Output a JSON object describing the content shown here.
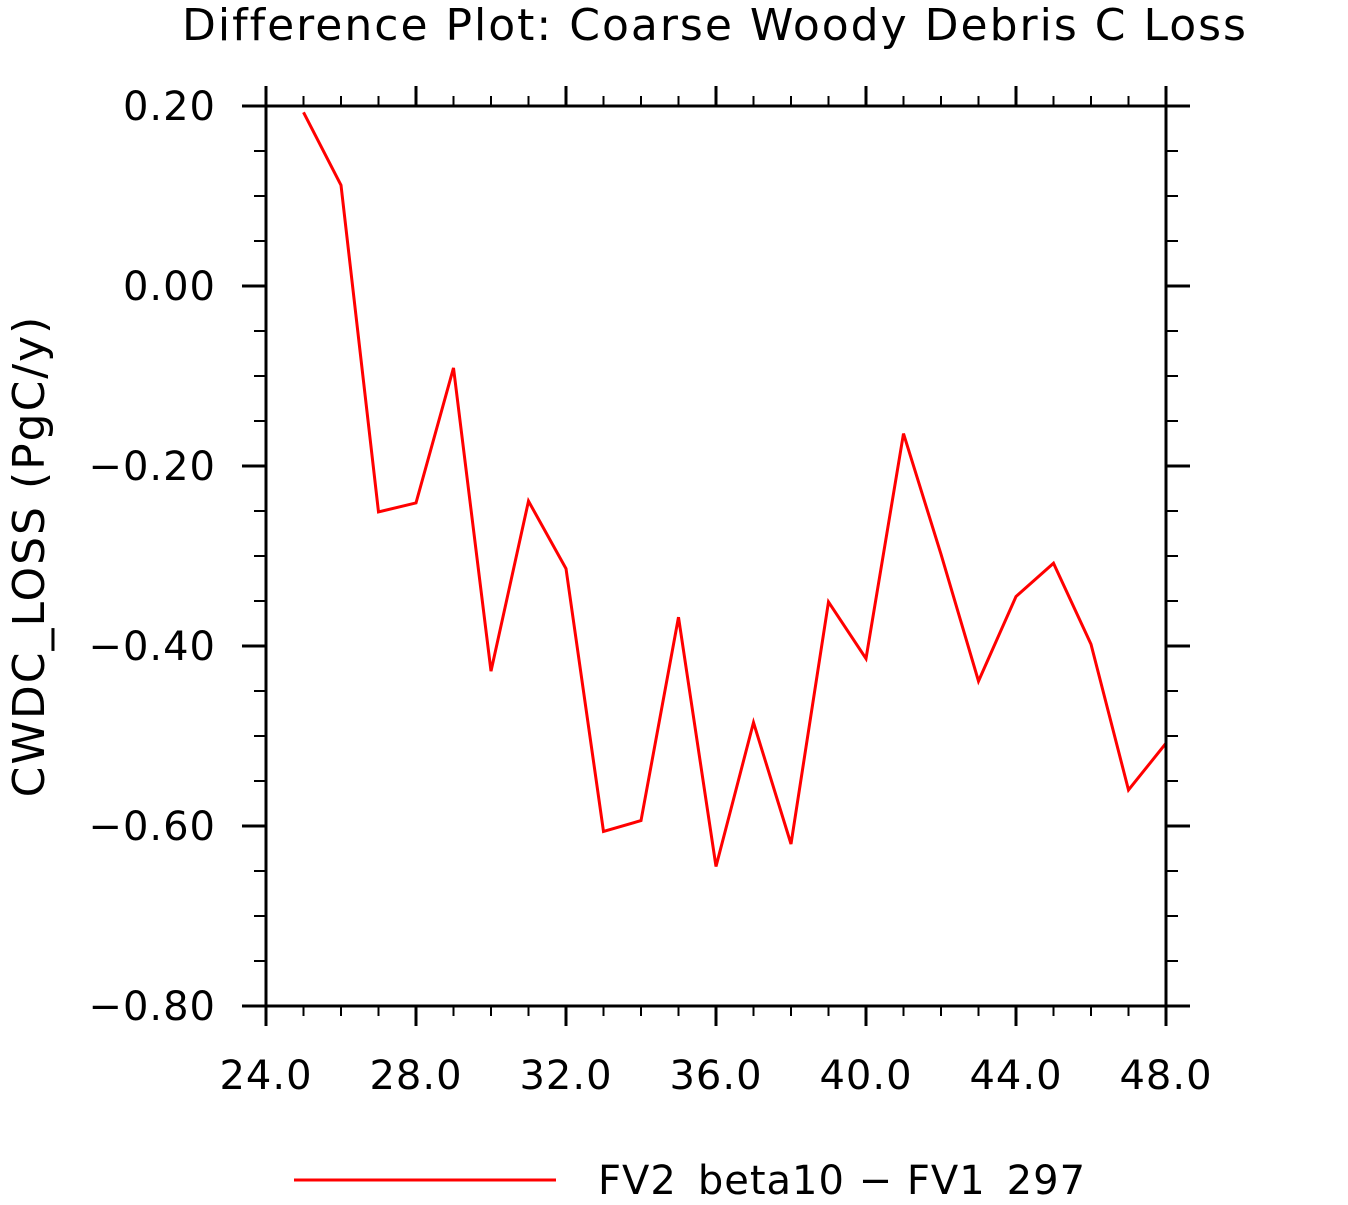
{
  "chart_data": {
    "type": "line",
    "title": "Difference Plot: Coarse Woody Debris C Loss",
    "xlabel": "",
    "ylabel": "CWDC_LOSS  (PgC/y)",
    "xlim": [
      24,
      48
    ],
    "ylim": [
      -0.8,
      0.2
    ],
    "x_ticks": [
      24,
      28,
      32,
      36,
      40,
      44,
      48
    ],
    "x_tick_labels": [
      "24.0",
      "28.0",
      "32.0",
      "36.0",
      "40.0",
      "44.0",
      "48.0"
    ],
    "y_ticks": [
      0.2,
      0.0,
      -0.2,
      -0.4,
      -0.6,
      -0.8
    ],
    "y_tick_labels": [
      "0.20",
      "0.00",
      "−0.20",
      "−0.40",
      "−0.60",
      "−0.80"
    ],
    "grid": false,
    "legend_position": "bottom",
    "series": [
      {
        "name": "FV2_beta10 − FV1_297",
        "color": "#ff0000",
        "x": [
          25,
          26,
          27,
          28,
          29,
          30,
          31,
          32,
          33,
          34,
          35,
          36,
          37,
          38,
          39,
          40,
          41,
          42,
          43,
          44,
          45,
          46,
          47,
          48
        ],
        "y": [
          0.193,
          0.112,
          -0.251,
          -0.241,
          -0.091,
          -0.428,
          -0.239,
          -0.314,
          -0.606,
          -0.594,
          -0.368,
          -0.645,
          -0.485,
          -0.62,
          -0.351,
          -0.414,
          -0.164,
          -0.298,
          -0.439,
          -0.345,
          -0.308,
          -0.398,
          -0.56,
          -0.508
        ]
      }
    ]
  }
}
